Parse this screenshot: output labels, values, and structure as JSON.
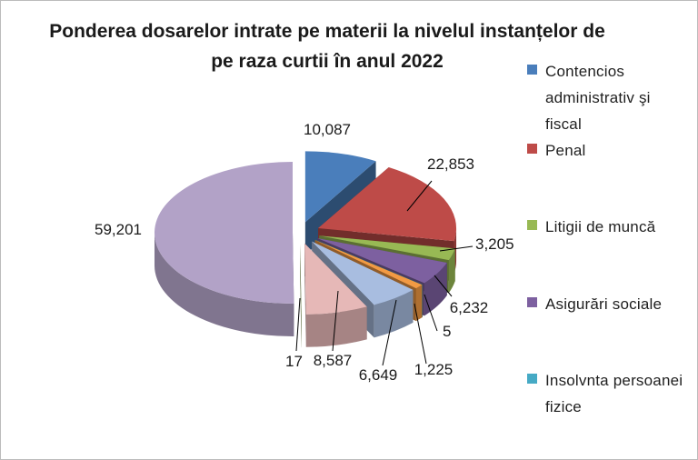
{
  "chart_data": {
    "type": "pie",
    "title": "Ponderea dosarelor intrate  pe materii la nivelul instanțelor de pe raza curtii în anul 2022",
    "legend_position": "right",
    "slices": [
      {
        "label": "Contencios administrativ şi fiscal",
        "value": 10087,
        "value_label": "10,087",
        "color": "#4a7ebb"
      },
      {
        "label": "Penal",
        "value": 22853,
        "value_label": "22,853",
        "color": "#be4b48"
      },
      {
        "label": "Litigii de muncă",
        "value": 3205,
        "value_label": "3,205",
        "color": "#98b954"
      },
      {
        "label": "Asigurări sociale",
        "value": 6232,
        "value_label": "6,232",
        "color": "#7d60a0"
      },
      {
        "label": "Insolvnta persoanei fizice",
        "value": 5,
        "value_label": "5",
        "color": "#46aac5"
      },
      {
        "label": "",
        "value": 1225,
        "value_label": "1,225",
        "color": "#f29a44"
      },
      {
        "label": "",
        "value": 6649,
        "value_label": "6,649",
        "color": "#a8bde0"
      },
      {
        "label": "",
        "value": 8587,
        "value_label": "8,587",
        "color": "#e6b8b7"
      },
      {
        "label": "",
        "value": 17,
        "value_label": "17",
        "color": "#c4d79b"
      },
      {
        "label": "",
        "value": 59201,
        "value_label": "59,201",
        "color": "#b2a2c7"
      }
    ]
  },
  "legend": [
    {
      "label": "Contencios administrativ şi fiscal",
      "color": "#4a7ebb"
    },
    {
      "label": "Penal",
      "color": "#be4b48"
    },
    {
      "label": "Litigii de muncă",
      "color": "#98b954"
    },
    {
      "label": "Asigurări sociale",
      "color": "#7d60a0"
    },
    {
      "label": "Insolvnta persoanei fizice",
      "color": "#46aac5"
    }
  ]
}
